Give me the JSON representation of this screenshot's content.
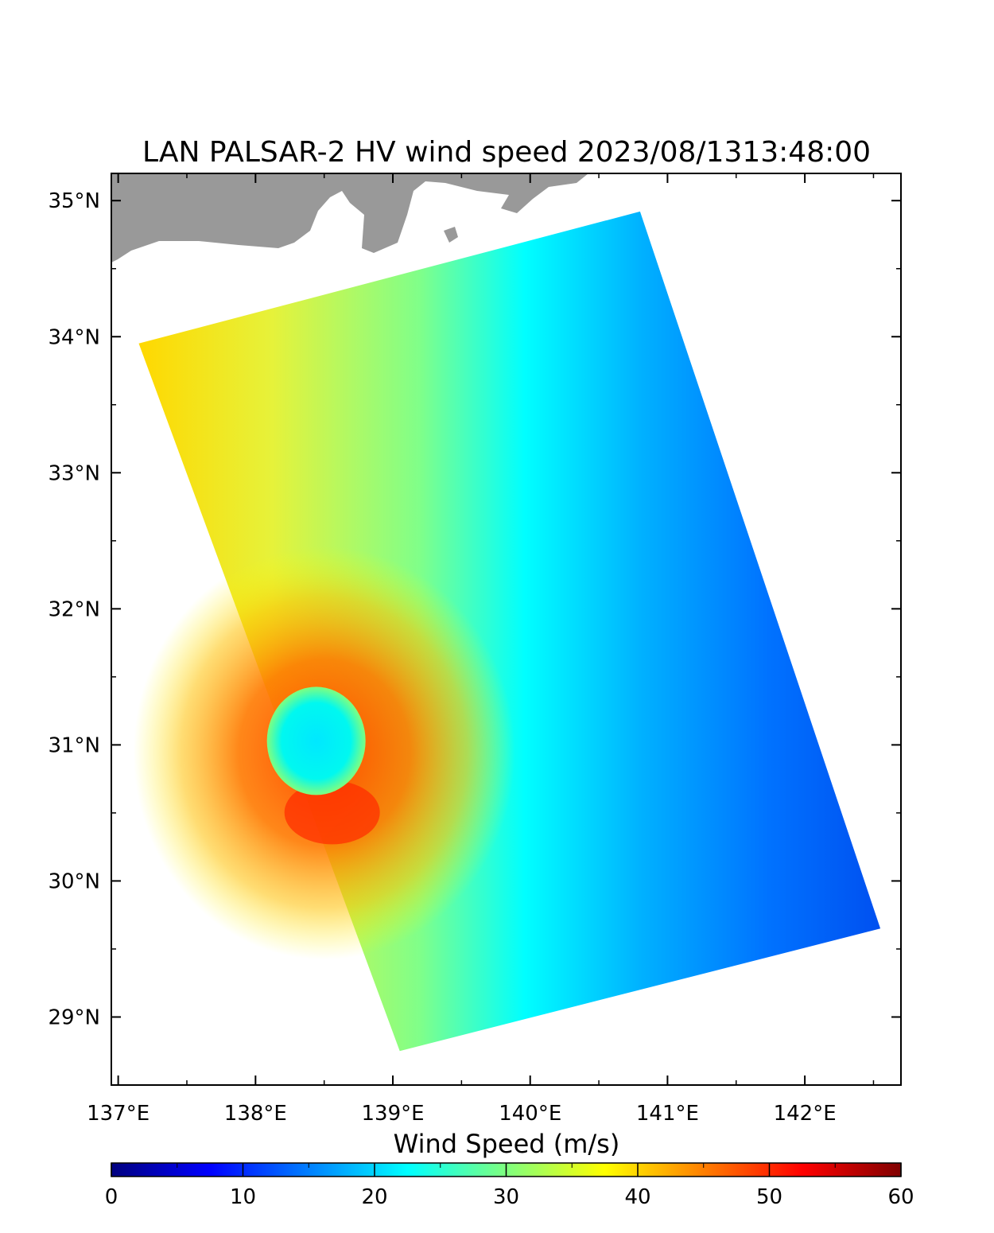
{
  "title": "LAN  PALSAR-2 HV  wind speed 2023/08/1313:48:00",
  "map": {
    "lon_range": [
      136.95,
      142.7
    ],
    "lat_range": [
      28.5,
      35.2
    ],
    "lon_ticks": [
      {
        "value": 137,
        "label": "137°E"
      },
      {
        "value": 138,
        "label": "138°E"
      },
      {
        "value": 139,
        "label": "139°E"
      },
      {
        "value": 140,
        "label": "140°E"
      },
      {
        "value": 141,
        "label": "141°E"
      },
      {
        "value": 142,
        "label": "142°E"
      }
    ],
    "lat_ticks": [
      {
        "value": 35,
        "label": "35°N"
      },
      {
        "value": 34,
        "label": "34°N"
      },
      {
        "value": 33,
        "label": "33°N"
      },
      {
        "value": 32,
        "label": "32°N"
      },
      {
        "value": 31,
        "label": "31°N"
      },
      {
        "value": 30,
        "label": "30°N"
      },
      {
        "value": 29,
        "label": "29°N"
      }
    ],
    "swath_corners_lonlat": [
      [
        137.15,
        33.95
      ],
      [
        140.8,
        34.92
      ],
      [
        142.55,
        29.65
      ],
      [
        139.05,
        28.75
      ]
    ],
    "eye_center_lonlat": [
      138.5,
      31.0
    ],
    "land_color": "#999999"
  },
  "colorbar": {
    "title": "Wind Speed (m/s)",
    "min": 0,
    "max": 60,
    "ticks": [
      {
        "value": 0,
        "label": "0"
      },
      {
        "value": 10,
        "label": "10"
      },
      {
        "value": 20,
        "label": "20"
      },
      {
        "value": 30,
        "label": "30"
      },
      {
        "value": 40,
        "label": "40"
      },
      {
        "value": 50,
        "label": "50"
      },
      {
        "value": 60,
        "label": "60"
      }
    ],
    "colors": [
      "#00007f",
      "#0000ff",
      "#007fff",
      "#00ffff",
      "#7fff7f",
      "#ffff00",
      "#ff7f00",
      "#ff0000",
      "#7f0000"
    ]
  }
}
